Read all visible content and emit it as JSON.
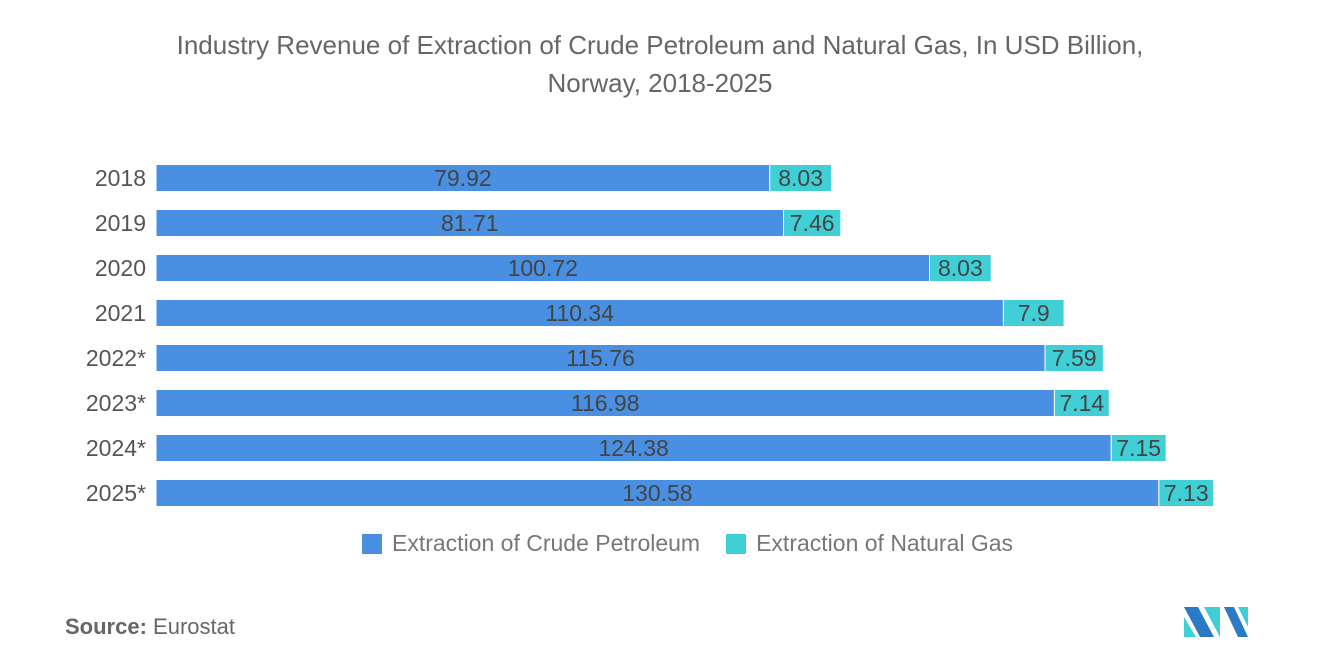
{
  "chart_data": {
    "type": "bar",
    "orientation": "horizontal",
    "stacked": true,
    "title": "Industry Revenue of Extraction of Crude Petroleum and Natural Gas, In USD Billion,",
    "title_line2": "Norway, 2018-2025",
    "categories": [
      "2018",
      "2019",
      "2020",
      "2021",
      "2022*",
      "2023*",
      "2024*",
      "2025*"
    ],
    "series": [
      {
        "name": "Extraction of Crude Petroleum",
        "color": "#4a90e2",
        "values": [
          79.92,
          81.71,
          100.72,
          110.34,
          115.76,
          116.98,
          124.38,
          130.58
        ],
        "labels": [
          "79.92",
          "81.71",
          "100.72",
          "110.34",
          "115.76",
          "116.98",
          "124.38",
          "130.58"
        ]
      },
      {
        "name": "Extraction of Natural Gas",
        "color": "#3fcfd5",
        "values": [
          8.03,
          7.46,
          8.03,
          7.9,
          7.59,
          7.14,
          7.15,
          7.13
        ],
        "labels": [
          "8.03",
          "7.46",
          "8.03",
          "7.9",
          "7.59",
          "7.14",
          "7.15",
          "7.13"
        ]
      }
    ],
    "xlim": [
      0,
      140
    ],
    "grid": false,
    "legend": "bottom"
  },
  "source": {
    "label": "Source:",
    "value": "Eurostat"
  }
}
